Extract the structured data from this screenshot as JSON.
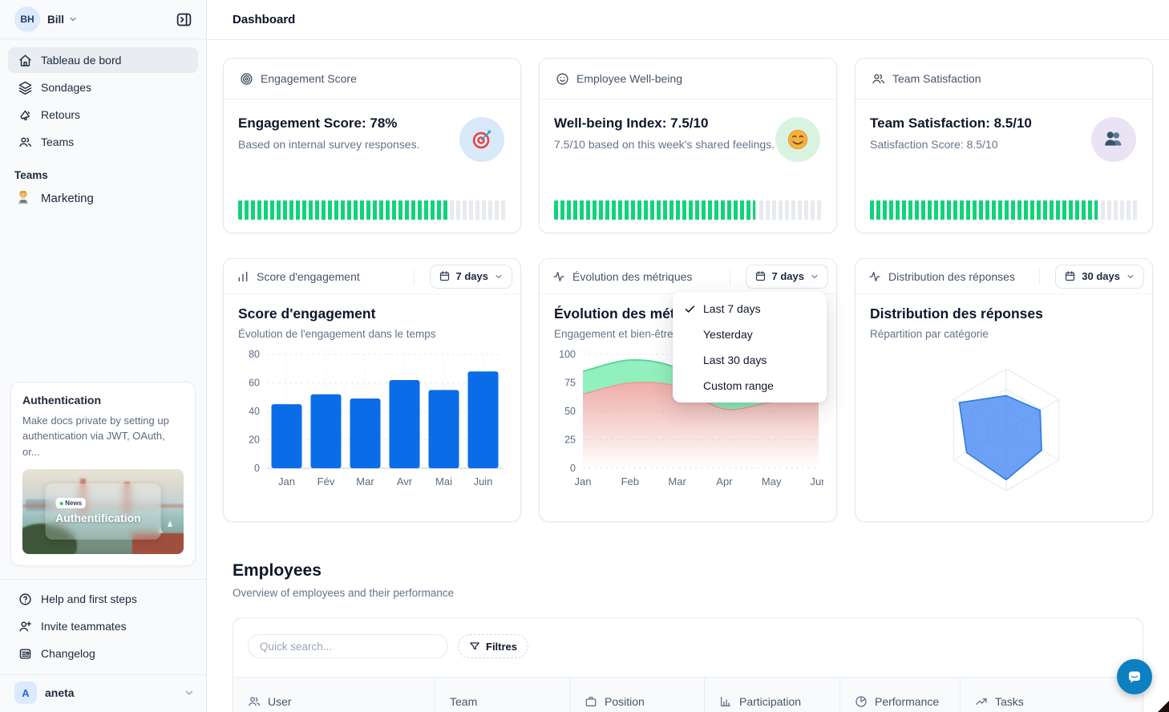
{
  "sidebar": {
    "user": {
      "initials": "BH",
      "name": "Bill"
    },
    "nav": [
      {
        "label": "Tableau de bord",
        "icon": "home-icon",
        "active": true
      },
      {
        "label": "Sondages",
        "icon": "layers-icon",
        "active": false
      },
      {
        "label": "Retours",
        "icon": "megaphone-icon",
        "active": false
      },
      {
        "label": "Teams",
        "icon": "users-icon",
        "active": false
      }
    ],
    "teams_section_label": "Teams",
    "teams": [
      {
        "label": "Marketing",
        "icon": "technologist-emoji"
      }
    ],
    "promo": {
      "title": "Authentication",
      "body": "Make docs private by setting up authentication via JWT, OAuth, or...",
      "badge": "News",
      "image_title": "Authentification"
    },
    "footer_nav": [
      {
        "label": "Help and first steps",
        "icon": "help-circle-icon"
      },
      {
        "label": "Invite teammates",
        "icon": "user-plus-icon"
      },
      {
        "label": "Changelog",
        "icon": "newspaper-icon"
      }
    ],
    "workspace": {
      "initial": "A",
      "name": "aneta"
    }
  },
  "header": {
    "title": "Dashboard"
  },
  "stat_cards": [
    {
      "header": "Engagement Score",
      "header_icon": "target-icon",
      "title": "Engagement Score: 78%",
      "subtitle": "Based on internal survey responses.",
      "emoji": "target-dart-emoji",
      "emoji_bg": "#d8e9f9",
      "progress": 78,
      "progress_color": "#10d37a"
    },
    {
      "header": "Employee Well-being",
      "header_icon": "smiley-icon",
      "title": "Well-being Index: 7.5/10",
      "subtitle": "7.5/10 based on this week's shared feelings.",
      "emoji": "smiling-face-emoji",
      "emoji_bg": "#d9f3e1",
      "progress": 75,
      "progress_color": "#10d37a"
    },
    {
      "header": "Team Satisfaction",
      "header_icon": "users-icon",
      "title": "Team Satisfaction: 8.5/10",
      "subtitle": "Satisfaction Score: 8.5/10",
      "emoji": "busts-in-silhouette-emoji",
      "emoji_bg": "#eae3f6",
      "progress": 85,
      "progress_color": "#10d37a"
    }
  ],
  "chart_cards": [
    {
      "header": "Score d'engagement",
      "header_icon": "bar-chart-icon",
      "range": "7 days"
    },
    {
      "header": "Évolution des métriques",
      "header_icon": "activity-icon",
      "range": "7 days"
    },
    {
      "header": "Distribution des réponses",
      "header_icon": "activity-icon",
      "range": "30 days"
    }
  ],
  "dropdown": {
    "items": [
      {
        "label": "Last 7 days",
        "checked": true
      },
      {
        "label": "Yesterday",
        "checked": false
      },
      {
        "label": "Last 30 days",
        "checked": false
      },
      {
        "label": "Custom range",
        "checked": false
      }
    ]
  },
  "chart_data": [
    {
      "type": "bar",
      "title": "Score d'engagement",
      "subtitle": "Évolution de l'engagement dans le temps",
      "categories": [
        "Jan",
        "Fév",
        "Mar",
        "Avr",
        "Mai",
        "Juin"
      ],
      "values": [
        45,
        52,
        49,
        62,
        55,
        68
      ],
      "ylim": [
        0,
        80
      ],
      "yticks": [
        0,
        20,
        40,
        60,
        80
      ],
      "bar_color": "#0b6ce8",
      "grid": "dashed",
      "legend": "none"
    },
    {
      "type": "area",
      "title": "Évolution des métriques",
      "subtitle": "Engagement et bien-être",
      "x": [
        "Jan",
        "Feb",
        "Mar",
        "Apr",
        "May",
        "Jun"
      ],
      "series": [
        {
          "name": "engagement",
          "values": [
            85,
            95,
            88,
            62,
            68,
            75
          ],
          "color": "#8ceebb",
          "line": "#57d79b"
        },
        {
          "name": "bien-etre",
          "values": [
            65,
            75,
            72,
            52,
            58,
            62
          ],
          "color": "#eca49d",
          "line": "#e89d96"
        }
      ],
      "ylim": [
        0,
        100
      ],
      "yticks": [
        0,
        25,
        50,
        75,
        100
      ],
      "grid": "dashed",
      "legend": "none"
    },
    {
      "type": "radar",
      "title": "Distribution des réponses",
      "subtitle": "Répartition par catégorie",
      "axes": 6,
      "rings": 3,
      "max": 100,
      "values": [
        56,
        64,
        67,
        82,
        75,
        89
      ],
      "fill": "rgba(66,134,244,0.78)",
      "stroke": "#2f7cdb",
      "grid_color": "#e3e7ee"
    }
  ],
  "employees": {
    "title": "Employees",
    "subtitle": "Overview of employees and their performance",
    "search_placeholder": "Quick search...",
    "filters_label": "Filtres",
    "columns": [
      {
        "label": "User",
        "icon": "users-icon"
      },
      {
        "label": "Team",
        "icon": "none"
      },
      {
        "label": "Position",
        "icon": "briefcase-icon"
      },
      {
        "label": "Participation",
        "icon": "bar-chart-axis-icon"
      },
      {
        "label": "Performance",
        "icon": "pie-chart-icon"
      },
      {
        "label": "Tasks",
        "icon": "trending-up-icon"
      }
    ]
  }
}
